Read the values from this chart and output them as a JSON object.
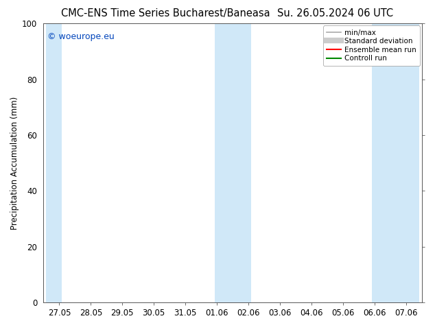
{
  "title_left": "CMC-ENS Time Series Bucharest/Baneasa",
  "title_right": "Su. 26.05.2024 06 UTC",
  "ylabel": "Precipitation Accumulation (mm)",
  "ylim": [
    0,
    100
  ],
  "yticks": [
    0,
    20,
    40,
    60,
    80,
    100
  ],
  "background_color": "#ffffff",
  "plot_bg_color": "#ffffff",
  "watermark": "© woeurope.eu",
  "watermark_color": "#0044bb",
  "legend_items": [
    {
      "label": "min/max",
      "color": "#aaaaaa",
      "lw": 1.2,
      "style": "solid"
    },
    {
      "label": "Standard deviation",
      "color": "#cccccc",
      "lw": 6,
      "style": "solid"
    },
    {
      "label": "Ensemble mean run",
      "color": "#ff0000",
      "lw": 1.5,
      "style": "solid"
    },
    {
      "label": "Controll run",
      "color": "#008800",
      "lw": 1.5,
      "style": "solid"
    }
  ],
  "xtick_labels": [
    "27.05",
    "28.05",
    "29.05",
    "30.05",
    "31.05",
    "01.06",
    "02.06",
    "03.06",
    "04.06",
    "05.06",
    "06.06",
    "07.06"
  ],
  "xtick_positions": [
    0,
    1,
    2,
    3,
    4,
    5,
    6,
    7,
    8,
    9,
    10,
    11
  ],
  "shaded_regions": [
    {
      "xmin": -0.42,
      "xmax": 0.08
    },
    {
      "xmin": 4.92,
      "xmax": 6.08
    },
    {
      "xmin": 9.92,
      "xmax": 11.42
    }
  ],
  "shade_fill_color": "#d0e8f8",
  "font_size_title": 10.5,
  "font_size_ticks": 8.5,
  "font_size_legend": 7.5,
  "font_size_ylabel": 8.5,
  "font_size_watermark": 9,
  "right_ticks_color": "#888888"
}
